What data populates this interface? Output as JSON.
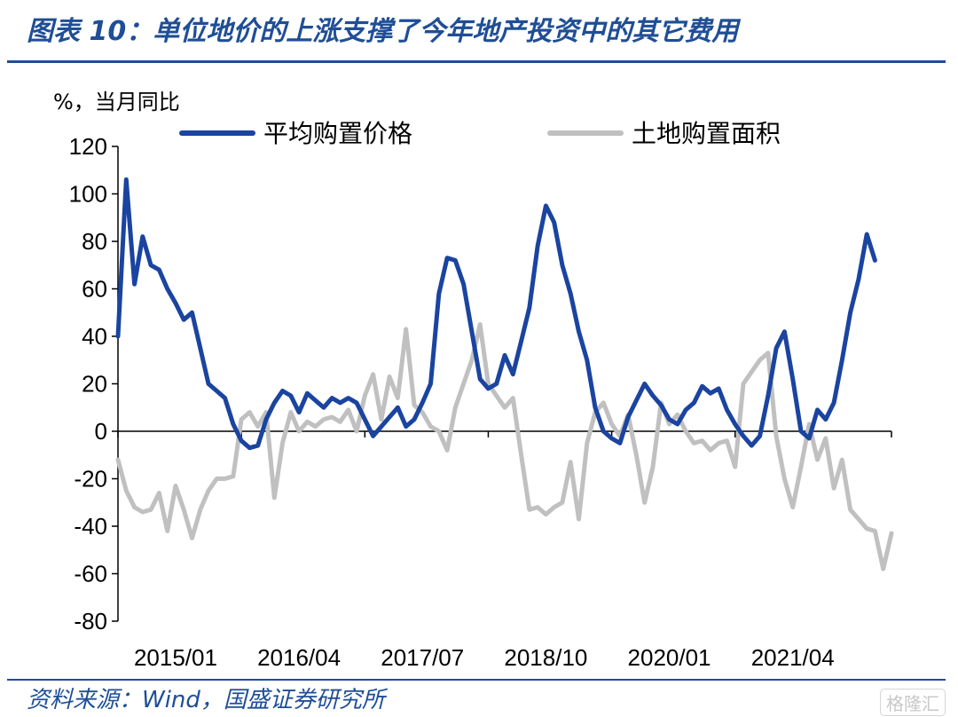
{
  "title": "图表 10：单位地价的上涨支撑了今年地产投资中的其它费用",
  "source": "资料来源：Wind，国盛证券研究所",
  "watermark": "格隆汇",
  "colors": {
    "title": "#1f4e96",
    "series1": "#1a44a0",
    "series2": "#c0c0c0"
  },
  "chart_data": {
    "type": "line",
    "ylabel": "%，当月同比",
    "ylim": [
      -80,
      120
    ],
    "yticks": [
      120,
      100,
      80,
      60,
      40,
      20,
      0,
      -20,
      -40,
      -60,
      -80
    ],
    "x_tick_labels": [
      "2015/01",
      "2016/04",
      "2017/07",
      "2018/10",
      "2020/01",
      "2021/04"
    ],
    "x_start": "2015/01",
    "x_end": "2022/03",
    "legend_position": "top",
    "grid": false,
    "series": [
      {
        "name": "平均购置价格",
        "values": [
          40,
          106,
          62,
          82,
          70,
          68,
          60,
          54,
          47,
          50,
          35,
          20,
          17,
          14,
          3,
          -4,
          -7,
          -6,
          5,
          12,
          17,
          15,
          8,
          16,
          13,
          10,
          14,
          12,
          14,
          12,
          5,
          -2,
          2,
          6,
          10,
          2,
          5,
          12,
          20,
          58,
          73,
          72,
          62,
          42,
          22,
          18,
          20,
          32,
          24,
          38,
          52,
          78,
          95,
          88,
          70,
          58,
          42,
          30,
          10,
          0,
          -3,
          -5,
          6,
          13,
          20,
          15,
          11,
          5,
          3,
          9,
          12,
          19,
          16,
          18,
          9,
          3,
          -2,
          -6,
          -2,
          15,
          35,
          42,
          22,
          0,
          -3,
          9,
          5,
          12,
          30,
          50,
          64,
          83,
          72
        ]
      },
      {
        "name": "土地购置面积",
        "values": [
          -12,
          -25,
          -32,
          -34,
          -33,
          -26,
          -42,
          -23,
          -33,
          -45,
          -33,
          -25,
          -20,
          -20,
          -19,
          5,
          8,
          2,
          8,
          -28,
          -5,
          8,
          0,
          4,
          2,
          5,
          6,
          4,
          9,
          0,
          15,
          24,
          5,
          23,
          14,
          43,
          11,
          8,
          2,
          0,
          -8,
          10,
          20,
          30,
          45,
          20,
          15,
          10,
          14,
          -10,
          -33,
          -32,
          -35,
          -32,
          -30,
          -13,
          -37,
          -5,
          8,
          12,
          3,
          -2,
          7,
          -10,
          -30,
          -15,
          12,
          3,
          7,
          0,
          -5,
          -4,
          -8,
          -5,
          -4,
          -15,
          20,
          25,
          30,
          33,
          -2,
          -20,
          -32,
          -15,
          3,
          -12,
          -3,
          -24,
          -12,
          -33,
          -37,
          -41,
          -42,
          -58,
          -43
        ]
      }
    ]
  }
}
